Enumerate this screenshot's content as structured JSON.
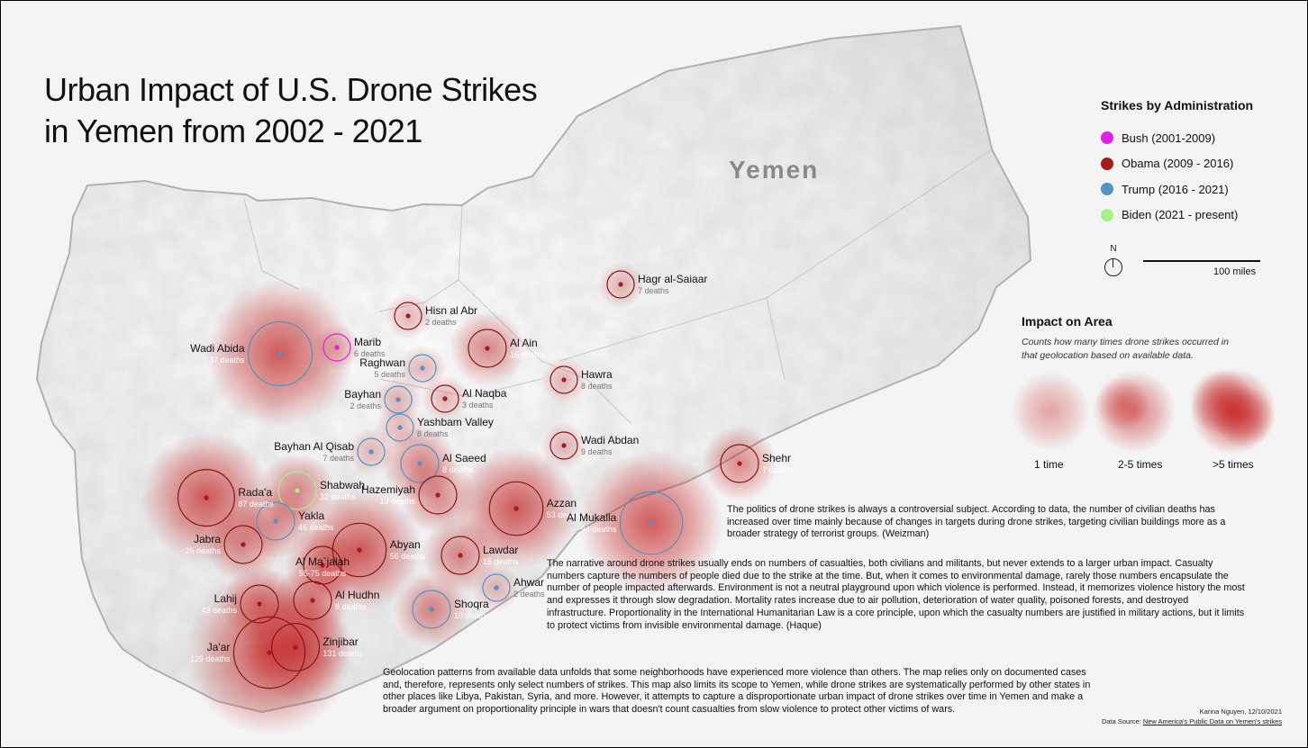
{
  "title_lines": [
    "Urban Impact of U.S. Drone Strikes",
    "in Yemen from  2002 - 2021"
  ],
  "country_label": "Yemen",
  "legend_admin": {
    "title": "Strikes by Administration",
    "items": [
      {
        "label": "Bush (2001-2009)",
        "color": "#e020e6"
      },
      {
        "label": "Obama (2009 - 2016)",
        "color": "#a31d1d"
      },
      {
        "label": "Trump (2016 - 2021)",
        "color": "#4f93c9"
      },
      {
        "label": "Biden (2021 - present)",
        "color": "#a6f08a"
      }
    ]
  },
  "north_label": "N",
  "scale_label": "100 miles",
  "legend_impact": {
    "title": "Impact on Area",
    "description": "Counts how many times drone strikes occurred in that geolocation based on available data.",
    "levels": [
      "1 time",
      "2-5 times",
      ">5 times"
    ]
  },
  "colors": {
    "impact": "#c42020",
    "obama": "#a31d1d",
    "trump": "#4f93c9",
    "bush": "#e020e6",
    "biden": "#a6f08a"
  },
  "locations": [
    {
      "name": "Hagr al-Saiaar",
      "deaths": "7 deaths",
      "admin": "obama",
      "impact": "1 time"
    },
    {
      "name": "Hisn al Abr",
      "deaths": "2 deaths",
      "admin": "obama",
      "impact": "1 time"
    },
    {
      "name": "Wadi Abida",
      "deaths": "37 deaths",
      "admin": "trump",
      "impact": ">5 times"
    },
    {
      "name": "Marib",
      "deaths": "6 deaths",
      "admin": "bush",
      "impact": "1 time"
    },
    {
      "name": "Al Ain",
      "deaths": "16 deaths",
      "admin": "obama",
      "impact": "2-5 times"
    },
    {
      "name": "Raghwan",
      "deaths": "5 deaths",
      "admin": "trump",
      "impact": "1 time"
    },
    {
      "name": "Hawra",
      "deaths": "8 deaths",
      "admin": "obama",
      "impact": "1 time"
    },
    {
      "name": "Bayhan",
      "deaths": "2 deaths",
      "admin": "trump",
      "impact": "1 time"
    },
    {
      "name": "Al Naqba",
      "deaths": "3 deaths",
      "admin": "obama",
      "impact": "1 time"
    },
    {
      "name": "Yashbam Valley",
      "deaths": "8 deaths",
      "admin": "trump",
      "impact": "1 time"
    },
    {
      "name": "Wadi Abdan",
      "deaths": "9 deaths",
      "admin": "obama",
      "impact": "1 time"
    },
    {
      "name": "Bayhan Al Qisab",
      "deaths": "7 deaths",
      "admin": "trump",
      "impact": "1 time"
    },
    {
      "name": "Al Saeed",
      "deaths": "8 deaths",
      "admin": "trump",
      "impact": "2-5 times"
    },
    {
      "name": "Shehr",
      "deaths": "7 deaths",
      "admin": "obama",
      "impact": "2-5 times"
    },
    {
      "name": "Rada'a",
      "deaths": "87 deaths",
      "admin": "obama",
      "impact": ">5 times"
    },
    {
      "name": "Shabwah",
      "deaths": "32 deaths",
      "admin": "biden",
      "impact": "2-5 times"
    },
    {
      "name": "Hazemiyah",
      "deaths": "13 deaths",
      "admin": "obama",
      "impact": "2-5 times"
    },
    {
      "name": "Azzan",
      "deaths": "53 deaths",
      "admin": "obama",
      "impact": ">5 times"
    },
    {
      "name": "Al Mukalla",
      "deaths": "94 deaths",
      "admin": "trump",
      "impact": ">5 times"
    },
    {
      "name": "Yakla",
      "deaths": "46 deaths",
      "admin": "trump",
      "impact": "2-5 times"
    },
    {
      "name": "Jabra",
      "deaths": "25 deaths",
      "admin": "obama",
      "impact": "2-5 times"
    },
    {
      "name": "Abyan",
      "deaths": "56 deaths",
      "admin": "obama",
      "impact": ">5 times"
    },
    {
      "name": "Lawdar",
      "deaths": "15 deaths",
      "admin": "obama",
      "impact": "2-5 times"
    },
    {
      "name": "Al Ma`jalah",
      "deaths": "55-75 deaths",
      "admin": "obama",
      "impact": "2-5 times"
    },
    {
      "name": "Ahwar",
      "deaths": "2 deaths",
      "admin": "trump",
      "impact": "1 time"
    },
    {
      "name": "Lahij",
      "deaths": "43 deaths",
      "admin": "obama",
      "impact": "2-5 times"
    },
    {
      "name": "Al Hudhn",
      "deaths": "8 deaths",
      "admin": "obama",
      "impact": "2-5 times"
    },
    {
      "name": "Shoqra",
      "deaths": "10 deaths",
      "admin": "trump",
      "impact": "2-5 times"
    },
    {
      "name": "Ja'ar",
      "deaths": "129 deaths",
      "admin": "obama",
      "impact": ">5 times"
    },
    {
      "name": "Zinjibar",
      "deaths": "131 deaths",
      "admin": "obama",
      "impact": ">5 times"
    }
  ],
  "paragraphs": [
    "The politics of drone strikes is always a controversial subject. According to data, the number of civilian deaths has increased over time mainly because of changes in targets during drone strikes, targeting civilian buildings more as a broader strategy of terrorist groups. (Weizman)",
    "The narrative around drone strikes usually ends on numbers of casualties, both civilians and militants, but never extends to a larger urban impact. Casualty numbers capture the numbers of people died due to the strike at the time. But, when it comes to environmental damage, rarely those numbers encapsulate the number of people impacted afterwards. Environment is not a neutral playground upon which violence is performed. Instead, it memorizes violence history the most and expresses it through slow degradation. Mortality rates increase due to air pollution, deterioration of water quality, poisoned forests, and destroyed infrastructure. Proportionality in the International Humanitarian Law is a core principle, upon which the casualty numbers are justified in military actions, but it limits to protect victims from invisible environmental damage.  (Haque)",
    "Geolocation patterns from available data unfolds that some neighborhoods have experienced more violence than others. The map relies only on documented cases and, therefore, represents only select numbers of strikes. This map also limits its scope to Yemen, while drone strikes are systematically performed by other states in other places like Libya, Pakistan, Syria, and more. However, it attempts to capture a disproportionate urban impact of drone strikes over time in Yemen and make a broader argument on proportionality principle in wars that doesn't count casualties from slow violence to protect other victims of wars."
  ],
  "credit": {
    "author": "Karina Nguyen, 12/10/2021",
    "source_prefix": "Data Source: ",
    "source_link": "New America's Public Data on Yemen's strikes"
  }
}
